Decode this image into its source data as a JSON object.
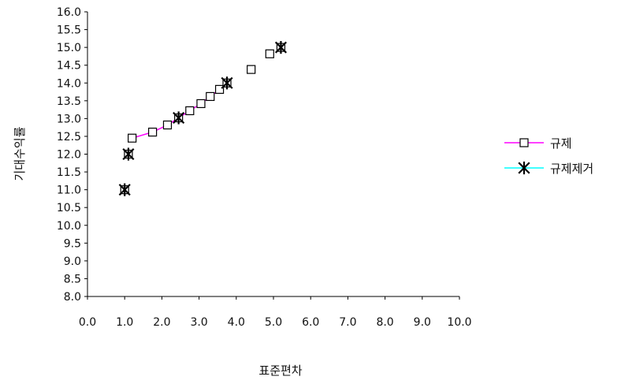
{
  "chart_data": {
    "type": "scatter",
    "xlabel": "표준편차",
    "ylabel": "기대수익률",
    "xlim": [
      0,
      10
    ],
    "ylim": [
      8,
      16
    ],
    "x_ticks": [
      "0.0",
      "1.0",
      "2.0",
      "3.0",
      "4.0",
      "5.0",
      "6.0",
      "7.0",
      "8.0",
      "9.0",
      "10.0"
    ],
    "y_ticks": [
      "8.0",
      "8.5",
      "9.0",
      "9.5",
      "10.0",
      "10.5",
      "11.0",
      "11.5",
      "12.0",
      "12.5",
      "13.0",
      "13.5",
      "14.0",
      "14.5",
      "15.0",
      "15.5",
      "16.0"
    ],
    "legend_position": "right",
    "grid": false,
    "series": [
      {
        "name": "규제",
        "marker": "square",
        "line_color": "#ff00ff",
        "points": [
          {
            "x": 1.0,
            "y": 11.0
          },
          {
            "x": 1.1,
            "y": 12.0
          },
          {
            "x": 1.2,
            "y": 12.45
          },
          {
            "x": 1.75,
            "y": 12.62
          },
          {
            "x": 2.15,
            "y": 12.82
          },
          {
            "x": 2.45,
            "y": 13.02
          },
          {
            "x": 2.75,
            "y": 13.22
          },
          {
            "x": 3.05,
            "y": 13.42
          },
          {
            "x": 3.3,
            "y": 13.62
          },
          {
            "x": 3.55,
            "y": 13.82
          },
          {
            "x": 3.75,
            "y": 14.0
          },
          {
            "x": 4.4,
            "y": 14.38
          },
          {
            "x": 4.9,
            "y": 14.82
          },
          {
            "x": 5.2,
            "y": 15.0
          }
        ],
        "line": [
          {
            "x": 1.2,
            "y": 12.45
          },
          {
            "x": 1.75,
            "y": 12.62
          },
          {
            "x": 2.15,
            "y": 12.82
          },
          {
            "x": 2.45,
            "y": 13.02
          },
          {
            "x": 2.75,
            "y": 13.22
          },
          {
            "x": 3.05,
            "y": 13.42
          },
          {
            "x": 3.3,
            "y": 13.62
          },
          {
            "x": 3.55,
            "y": 13.82
          },
          {
            "x": 3.75,
            "y": 14.0
          }
        ]
      },
      {
        "name": "규제제거",
        "marker": "asterisk",
        "line_color": "#00ffff",
        "points": [
          {
            "x": 1.0,
            "y": 11.0
          },
          {
            "x": 1.1,
            "y": 12.0
          },
          {
            "x": 2.45,
            "y": 13.02
          },
          {
            "x": 3.75,
            "y": 14.0
          },
          {
            "x": 5.2,
            "y": 15.0
          }
        ],
        "line": []
      }
    ]
  }
}
